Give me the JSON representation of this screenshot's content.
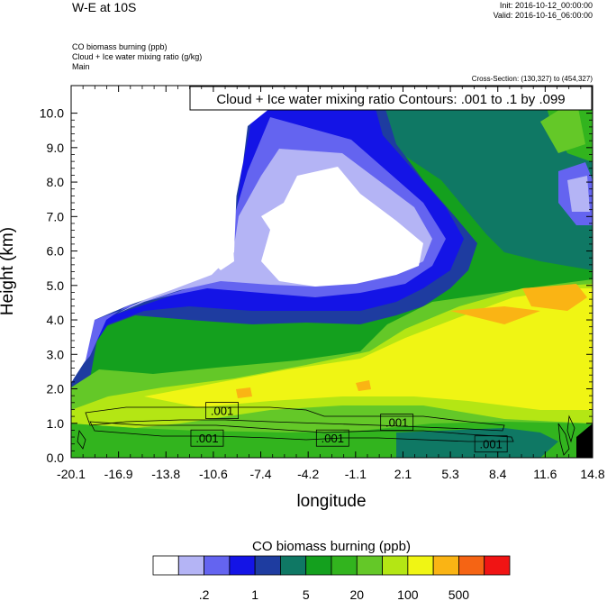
{
  "header": {
    "title": "W-E at 10S",
    "init": "Init: 2016-10-12_00:00:00",
    "valid": "Valid: 2016-10-16_06:00:00",
    "variables": [
      "CO biomass burning   (ppb)",
      "Cloud + Ice water mixing ratio   (g/kg)",
      "Main"
    ],
    "cross_section": "Cross-Section: (130,327) to (454,327)"
  },
  "chart_data": {
    "type": "heatmap",
    "title": "W-E at 10S",
    "xlabel": "longitude",
    "ylabel": "Height (km)",
    "x_ticks": [
      "-20.1",
      "-16.9",
      "-13.8",
      "-10.6",
      "-7.4",
      "-4.2",
      "-1.1",
      "2.1",
      "5.3",
      "8.4",
      "11.6",
      "14.8"
    ],
    "y_ticks": [
      "0.0",
      "1.0",
      "2.0",
      "3.0",
      "4.0",
      "5.0",
      "6.0",
      "7.0",
      "8.0",
      "9.0",
      "10.0"
    ],
    "xlim": [
      -20.1,
      14.8
    ],
    "ylim": [
      0,
      10.8
    ],
    "contour_info": "Cloud + Ice water mixing ratio Contours: .001 to .1 by .099",
    "contour_labels": [
      {
        "text": ".001",
        "x": -10.0,
        "y": 1.37
      },
      {
        "text": ".001",
        "x": 1.7,
        "y": 1.03
      },
      {
        "text": ".001",
        "x": -11.0,
        "y": 0.57
      },
      {
        "text": ".001",
        "x": -2.6,
        "y": 0.57
      },
      {
        "text": ".001",
        "x": 8.0,
        "y": 0.4
      }
    ],
    "legend": {
      "title": "CO biomass burning  (ppb)",
      "colors": [
        "#ffffff",
        "#b4b4f5",
        "#6464f0",
        "#1414e6",
        "#1e3ca0",
        "#0f7864",
        "#14a01e",
        "#32b41e",
        "#64c828",
        "#b4e614",
        "#f0f514",
        "#fab414",
        "#f56414",
        "#f01414"
      ],
      "tick_labels": [
        ".2",
        "1",
        "5",
        "20",
        "100",
        "500"
      ]
    }
  }
}
